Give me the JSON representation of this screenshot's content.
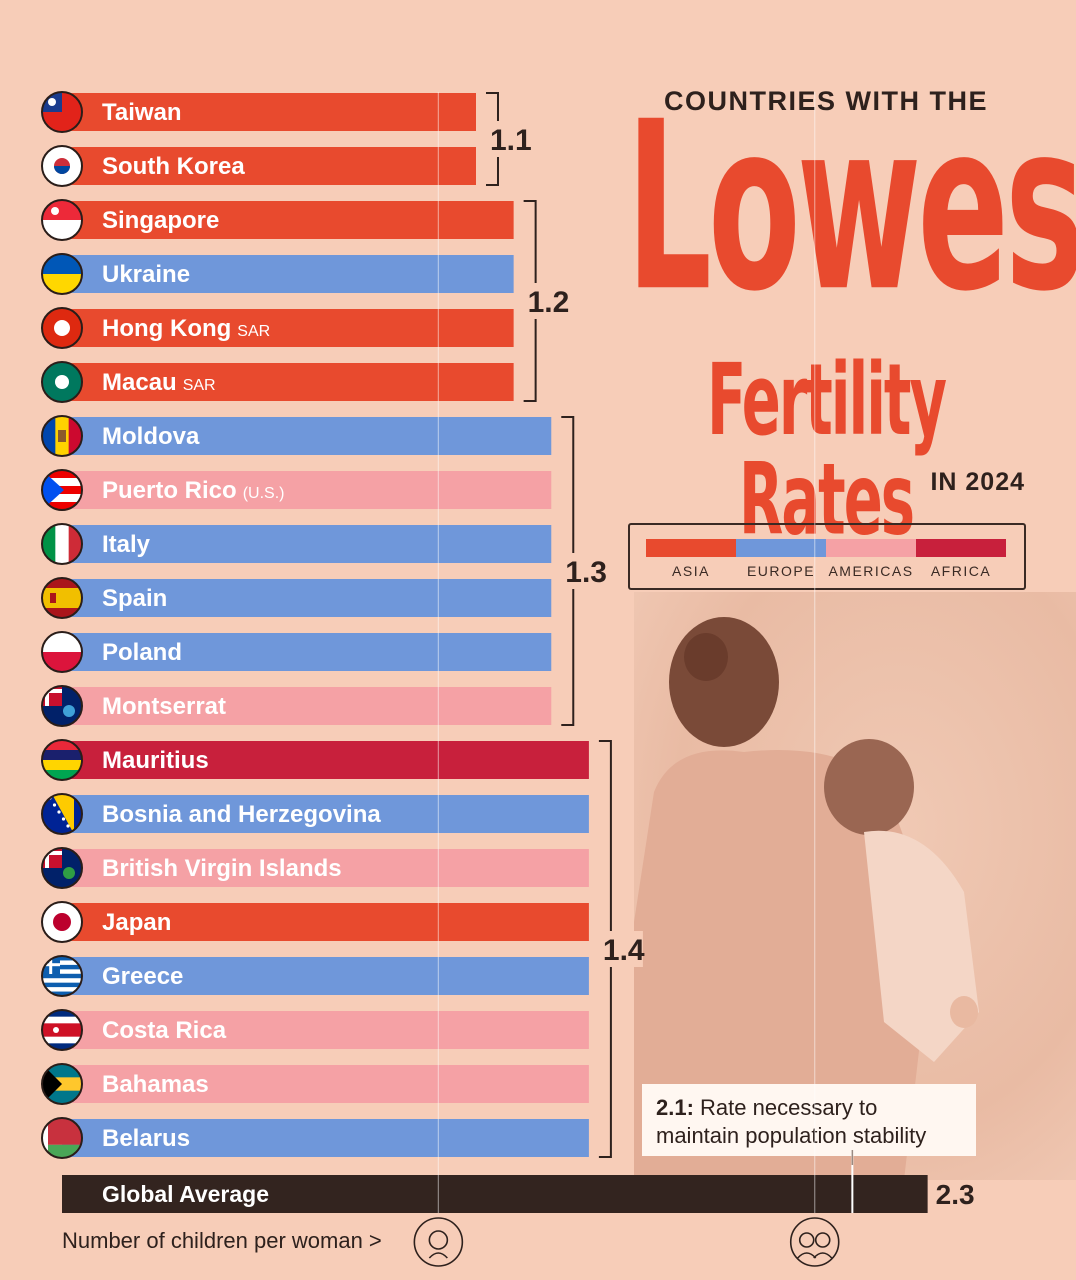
{
  "headline": {
    "top": "COUNTRIES WITH THE",
    "big_1": "Lowest",
    "big_2": "Fertility Rates",
    "sub": "IN 2024"
  },
  "legend": [
    {
      "label": "ASIA",
      "color": "#e84a2e"
    },
    {
      "label": "EUROPE",
      "color": "#6f97da"
    },
    {
      "label": "AMERICAS",
      "color": "#f5a1a5"
    },
    {
      "label": "AFRICA",
      "color": "#c8203c"
    }
  ],
  "note": {
    "value": "2.1:",
    "text_line1": " Rate necessary to",
    "text_line2": "maintain population stability"
  },
  "axis_label": "Number of children per woman >",
  "chart_data": {
    "type": "bar",
    "orientation": "horizontal",
    "title": "Countries with the Lowest Fertility Rates in 2024",
    "xlabel": "Number of children per woman",
    "xlim": [
      0,
      2.3
    ],
    "reference_line": {
      "value": 2.1,
      "label": "Rate necessary to maintain population stability"
    },
    "group_labels": [
      "1.1",
      "1.2",
      "1.3",
      "1.4"
    ],
    "bars": [
      {
        "country": "Taiwan",
        "suffix": "",
        "value": 1.1,
        "region": "ASIA",
        "color": "#e84a2e",
        "flag": "taiwan-flag"
      },
      {
        "country": "South Korea",
        "suffix": "",
        "value": 1.1,
        "region": "ASIA",
        "color": "#e84a2e",
        "flag": "south-korea-flag"
      },
      {
        "country": "Singapore",
        "suffix": "",
        "value": 1.2,
        "region": "ASIA",
        "color": "#e84a2e",
        "flag": "singapore-flag"
      },
      {
        "country": "Ukraine",
        "suffix": "",
        "value": 1.2,
        "region": "EUROPE",
        "color": "#6f97da",
        "flag": "ukraine-flag"
      },
      {
        "country": "Hong Kong",
        "suffix": "SAR",
        "value": 1.2,
        "region": "ASIA",
        "color": "#e84a2e",
        "flag": "hong-kong-flag"
      },
      {
        "country": "Macau",
        "suffix": "SAR",
        "value": 1.2,
        "region": "ASIA",
        "color": "#e84a2e",
        "flag": "macau-flag"
      },
      {
        "country": "Moldova",
        "suffix": "",
        "value": 1.3,
        "region": "EUROPE",
        "color": "#6f97da",
        "flag": "moldova-flag"
      },
      {
        "country": "Puerto Rico",
        "suffix": "(U.S.)",
        "value": 1.3,
        "region": "AMERICAS",
        "color": "#f5a1a5",
        "flag": "puerto-rico-flag"
      },
      {
        "country": "Italy",
        "suffix": "",
        "value": 1.3,
        "region": "EUROPE",
        "color": "#6f97da",
        "flag": "italy-flag"
      },
      {
        "country": "Spain",
        "suffix": "",
        "value": 1.3,
        "region": "EUROPE",
        "color": "#6f97da",
        "flag": "spain-flag"
      },
      {
        "country": "Poland",
        "suffix": "",
        "value": 1.3,
        "region": "EUROPE",
        "color": "#6f97da",
        "flag": "poland-flag"
      },
      {
        "country": "Montserrat",
        "suffix": "",
        "value": 1.3,
        "region": "AMERICAS",
        "color": "#f5a1a5",
        "flag": "montserrat-flag"
      },
      {
        "country": "Mauritius",
        "suffix": "",
        "value": 1.4,
        "region": "AFRICA",
        "color": "#c8203c",
        "flag": "mauritius-flag"
      },
      {
        "country": "Bosnia and Herzegovina",
        "suffix": "",
        "value": 1.4,
        "region": "EUROPE",
        "color": "#6f97da",
        "flag": "bosnia-flag"
      },
      {
        "country": "British Virgin Islands",
        "suffix": "",
        "value": 1.4,
        "region": "AMERICAS",
        "color": "#f5a1a5",
        "flag": "british-virgin-islands-flag"
      },
      {
        "country": "Japan",
        "suffix": "",
        "value": 1.4,
        "region": "ASIA",
        "color": "#e84a2e",
        "flag": "japan-flag"
      },
      {
        "country": "Greece",
        "suffix": "",
        "value": 1.4,
        "region": "EUROPE",
        "color": "#6f97da",
        "flag": "greece-flag"
      },
      {
        "country": "Costa Rica",
        "suffix": "",
        "value": 1.4,
        "region": "AMERICAS",
        "color": "#f5a1a5",
        "flag": "costa-rica-flag"
      },
      {
        "country": "Bahamas",
        "suffix": "",
        "value": 1.4,
        "region": "AMERICAS",
        "color": "#f5a1a5",
        "flag": "bahamas-flag"
      },
      {
        "country": "Belarus",
        "suffix": "",
        "value": 1.4,
        "region": "EUROPE",
        "color": "#6f97da",
        "flag": "belarus-flag"
      }
    ],
    "global_average": {
      "label": "Global Average",
      "value": 2.3,
      "display": "2.3",
      "color": "#33241f"
    }
  }
}
